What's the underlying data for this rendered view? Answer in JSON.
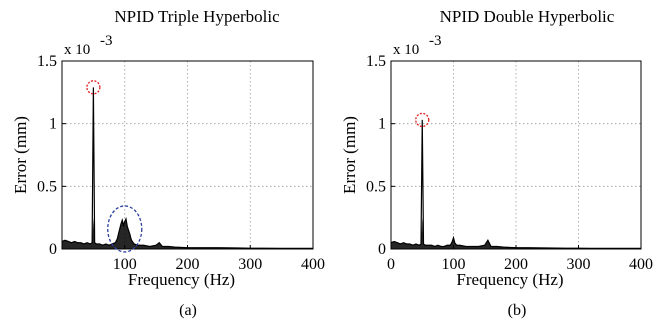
{
  "chart_data": [
    {
      "type": "line",
      "title": "NPID Triple Hyperbolic",
      "xlabel": "Frequency (Hz)",
      "ylabel": "Error (mm)",
      "y_multiplier": "x 10",
      "y_exponent": "-3",
      "xlim": [
        0,
        400
      ],
      "ylim": [
        0,
        1.5
      ],
      "xticks": [
        "100",
        "200",
        "300",
        "400"
      ],
      "yticks": [
        "0",
        "0.5",
        "1",
        "1.5"
      ],
      "grid": true,
      "caption": "(a)",
      "peak": {
        "x": 50,
        "y": 1.29
      },
      "series": [
        {
          "x": [
            0,
            5,
            10,
            15,
            20,
            25,
            30,
            35,
            40,
            45,
            48,
            50,
            52,
            55,
            60,
            65,
            70,
            75,
            80,
            85,
            88,
            90,
            92,
            94,
            96,
            98,
            100,
            102,
            104,
            106,
            108,
            110,
            112,
            115,
            120,
            130,
            140,
            150,
            155,
            160,
            170,
            180,
            200,
            220,
            250,
            280,
            300,
            320,
            350,
            380,
            400
          ],
          "y": [
            0.06,
            0.07,
            0.06,
            0.05,
            0.06,
            0.05,
            0.05,
            0.04,
            0.05,
            0.04,
            0.05,
            1.29,
            0.05,
            0.04,
            0.04,
            0.03,
            0.04,
            0.03,
            0.04,
            0.05,
            0.08,
            0.12,
            0.16,
            0.2,
            0.23,
            0.19,
            0.22,
            0.24,
            0.18,
            0.15,
            0.12,
            0.08,
            0.06,
            0.04,
            0.03,
            0.03,
            0.02,
            0.03,
            0.05,
            0.02,
            0.02,
            0.015,
            0.01,
            0.01,
            0.01,
            0.008,
            0.006,
            0.006,
            0.005,
            0.005,
            0.005
          ]
        }
      ]
    },
    {
      "type": "line",
      "title": "NPID Double Hyperbolic",
      "xlabel": "Frequency (Hz)",
      "ylabel": "Error (mm)",
      "y_multiplier": "x 10",
      "y_exponent": "-3",
      "xlim": [
        0,
        400
      ],
      "ylim": [
        0,
        1.5
      ],
      "xticks": [
        "0",
        "100",
        "200",
        "300",
        "400"
      ],
      "yticks": [
        "0",
        "0.5",
        "1",
        "1.5"
      ],
      "grid": true,
      "caption": "(b)",
      "peak": {
        "x": 50,
        "y": 1.03
      },
      "series": [
        {
          "x": [
            0,
            5,
            10,
            15,
            20,
            25,
            30,
            35,
            40,
            45,
            48,
            50,
            52,
            55,
            60,
            65,
            70,
            75,
            80,
            85,
            90,
            95,
            98,
            100,
            102,
            105,
            110,
            120,
            130,
            140,
            150,
            155,
            160,
            170,
            180,
            200,
            220,
            250,
            280,
            300,
            320,
            350,
            380,
            400
          ],
          "y": [
            0.05,
            0.06,
            0.05,
            0.04,
            0.05,
            0.04,
            0.04,
            0.03,
            0.04,
            0.03,
            0.04,
            1.03,
            0.04,
            0.03,
            0.03,
            0.03,
            0.02,
            0.03,
            0.02,
            0.02,
            0.03,
            0.03,
            0.06,
            0.09,
            0.05,
            0.03,
            0.03,
            0.02,
            0.02,
            0.02,
            0.03,
            0.07,
            0.02,
            0.02,
            0.015,
            0.01,
            0.01,
            0.008,
            0.006,
            0.006,
            0.005,
            0.005,
            0.005,
            0.005
          ]
        }
      ]
    }
  ]
}
